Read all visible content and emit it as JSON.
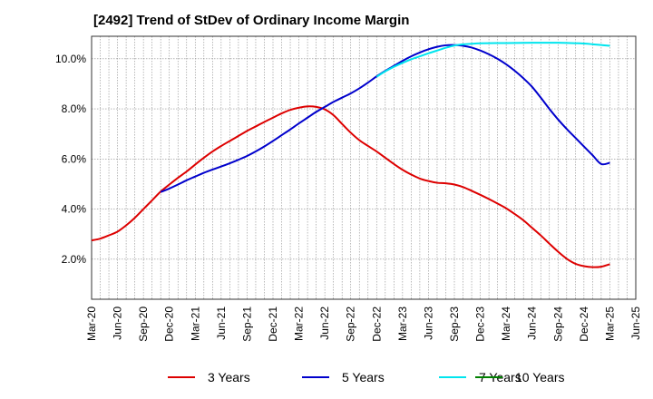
{
  "chart_data": {
    "type": "line",
    "title": "[2492]  Trend of StDev of Ordinary Income Margin",
    "xlabel": "",
    "ylabel": "",
    "x_ticks": [
      "Mar-20",
      "Jun-20",
      "Sep-20",
      "Dec-20",
      "Mar-21",
      "Jun-21",
      "Sep-21",
      "Dec-21",
      "Mar-22",
      "Jun-22",
      "Sep-22",
      "Dec-22",
      "Mar-23",
      "Jun-23",
      "Sep-23",
      "Dec-23",
      "Mar-24",
      "Jun-24",
      "Sep-24",
      "Dec-24",
      "Mar-25",
      "Jun-25"
    ],
    "y_ticks": [
      "2.0%",
      "4.0%",
      "6.0%",
      "8.0%",
      "10.0%"
    ],
    "y_tick_values": [
      2,
      4,
      6,
      8,
      10
    ],
    "ylim": [
      0.4,
      10.9
    ],
    "grid": true,
    "legend_position": "bottom",
    "series": [
      {
        "name": "3 Years",
        "color": "#dd0000",
        "points": [
          [
            "Mar-20",
            2.75
          ],
          [
            "Apr-20",
            2.82
          ],
          [
            "May-20",
            2.95
          ],
          [
            "Jun-20",
            3.1
          ],
          [
            "Jul-20",
            3.35
          ],
          [
            "Aug-20",
            3.65
          ],
          [
            "Sep-20",
            4.0
          ],
          [
            "Oct-20",
            4.35
          ],
          [
            "Nov-20",
            4.7
          ],
          [
            "Dec-20",
            4.98
          ],
          [
            "Jan-21",
            5.25
          ],
          [
            "Feb-21",
            5.5
          ],
          [
            "Mar-21",
            5.78
          ],
          [
            "Apr-21",
            6.05
          ],
          [
            "May-21",
            6.3
          ],
          [
            "Jun-21",
            6.52
          ],
          [
            "Jul-21",
            6.72
          ],
          [
            "Aug-21",
            6.92
          ],
          [
            "Sep-21",
            7.12
          ],
          [
            "Oct-21",
            7.3
          ],
          [
            "Nov-21",
            7.48
          ],
          [
            "Dec-21",
            7.65
          ],
          [
            "Jan-22",
            7.82
          ],
          [
            "Feb-22",
            7.96
          ],
          [
            "Mar-22",
            8.05
          ],
          [
            "Apr-22",
            8.1
          ],
          [
            "May-22",
            8.08
          ],
          [
            "Jun-22",
            7.98
          ],
          [
            "Jul-22",
            7.75
          ],
          [
            "Aug-22",
            7.4
          ],
          [
            "Sep-22",
            7.05
          ],
          [
            "Oct-22",
            6.75
          ],
          [
            "Nov-22",
            6.52
          ],
          [
            "Dec-22",
            6.3
          ],
          [
            "Jan-23",
            6.05
          ],
          [
            "Feb-23",
            5.8
          ],
          [
            "Mar-23",
            5.57
          ],
          [
            "Apr-23",
            5.38
          ],
          [
            "May-23",
            5.22
          ],
          [
            "Jun-23",
            5.12
          ],
          [
            "Jul-23",
            5.05
          ],
          [
            "Aug-23",
            5.03
          ],
          [
            "Sep-23",
            4.98
          ],
          [
            "Oct-23",
            4.88
          ],
          [
            "Nov-23",
            4.73
          ],
          [
            "Dec-23",
            4.57
          ],
          [
            "Jan-24",
            4.4
          ],
          [
            "Feb-24",
            4.22
          ],
          [
            "Mar-24",
            4.03
          ],
          [
            "Apr-24",
            3.8
          ],
          [
            "May-24",
            3.55
          ],
          [
            "Jun-24",
            3.25
          ],
          [
            "Jul-24",
            2.95
          ],
          [
            "Aug-24",
            2.62
          ],
          [
            "Sep-24",
            2.3
          ],
          [
            "Oct-24",
            2.02
          ],
          [
            "Nov-24",
            1.82
          ],
          [
            "Dec-24",
            1.72
          ],
          [
            "Jan-25",
            1.68
          ],
          [
            "Feb-25",
            1.7
          ],
          [
            "Mar-25",
            1.8
          ]
        ]
      },
      {
        "name": "5 Years",
        "color": "#0000cc",
        "points": [
          [
            "Nov-20",
            4.68
          ],
          [
            "Dec-20",
            4.82
          ],
          [
            "Jan-21",
            4.98
          ],
          [
            "Feb-21",
            5.15
          ],
          [
            "Mar-21",
            5.3
          ],
          [
            "Apr-21",
            5.45
          ],
          [
            "May-21",
            5.58
          ],
          [
            "Jun-21",
            5.7
          ],
          [
            "Jul-21",
            5.83
          ],
          [
            "Aug-21",
            5.97
          ],
          [
            "Sep-21",
            6.12
          ],
          [
            "Oct-21",
            6.3
          ],
          [
            "Nov-21",
            6.5
          ],
          [
            "Dec-21",
            6.72
          ],
          [
            "Jan-22",
            6.95
          ],
          [
            "Feb-22",
            7.18
          ],
          [
            "Mar-22",
            7.42
          ],
          [
            "Apr-22",
            7.65
          ],
          [
            "May-22",
            7.88
          ],
          [
            "Jun-22",
            8.08
          ],
          [
            "Jul-22",
            8.28
          ],
          [
            "Aug-22",
            8.45
          ],
          [
            "Sep-22",
            8.62
          ],
          [
            "Oct-22",
            8.82
          ],
          [
            "Nov-22",
            9.05
          ],
          [
            "Dec-22",
            9.3
          ],
          [
            "Jan-23",
            9.52
          ],
          [
            "Feb-23",
            9.72
          ],
          [
            "Mar-23",
            9.92
          ],
          [
            "Apr-23",
            10.1
          ],
          [
            "May-23",
            10.25
          ],
          [
            "Jun-23",
            10.38
          ],
          [
            "Jul-23",
            10.48
          ],
          [
            "Aug-23",
            10.54
          ],
          [
            "Sep-23",
            10.55
          ],
          [
            "Oct-23",
            10.52
          ],
          [
            "Nov-23",
            10.45
          ],
          [
            "Dec-23",
            10.33
          ],
          [
            "Jan-24",
            10.18
          ],
          [
            "Feb-24",
            10.0
          ],
          [
            "Mar-24",
            9.78
          ],
          [
            "Apr-24",
            9.52
          ],
          [
            "May-24",
            9.22
          ],
          [
            "Jun-24",
            8.88
          ],
          [
            "Jul-24",
            8.45
          ],
          [
            "Aug-24",
            8.0
          ],
          [
            "Sep-24",
            7.58
          ],
          [
            "Oct-24",
            7.2
          ],
          [
            "Nov-24",
            6.85
          ],
          [
            "Dec-24",
            6.5
          ],
          [
            "Jan-25",
            6.15
          ],
          [
            "Feb-25",
            5.8
          ],
          [
            "Mar-25",
            5.85
          ]
        ]
      },
      {
        "name": "7 Years",
        "color": "#00e5ee",
        "points": [
          [
            "Dec-22",
            9.28
          ],
          [
            "Jan-23",
            9.5
          ],
          [
            "Feb-23",
            9.68
          ],
          [
            "Mar-23",
            9.84
          ],
          [
            "Apr-23",
            9.98
          ],
          [
            "May-23",
            10.1
          ],
          [
            "Jun-23",
            10.22
          ],
          [
            "Jul-23",
            10.33
          ],
          [
            "Aug-23",
            10.44
          ],
          [
            "Sep-23",
            10.53
          ],
          [
            "Oct-23",
            10.58
          ],
          [
            "Nov-23",
            10.6
          ],
          [
            "Dec-23",
            10.62
          ],
          [
            "Mar-24",
            10.63
          ],
          [
            "Jun-24",
            10.64
          ],
          [
            "Sep-24",
            10.64
          ],
          [
            "Dec-24",
            10.61
          ],
          [
            "Jan-25",
            10.58
          ],
          [
            "Feb-25",
            10.55
          ],
          [
            "Mar-25",
            10.52
          ]
        ]
      },
      {
        "name": "10 Years",
        "color": "#008000",
        "points": []
      }
    ]
  }
}
